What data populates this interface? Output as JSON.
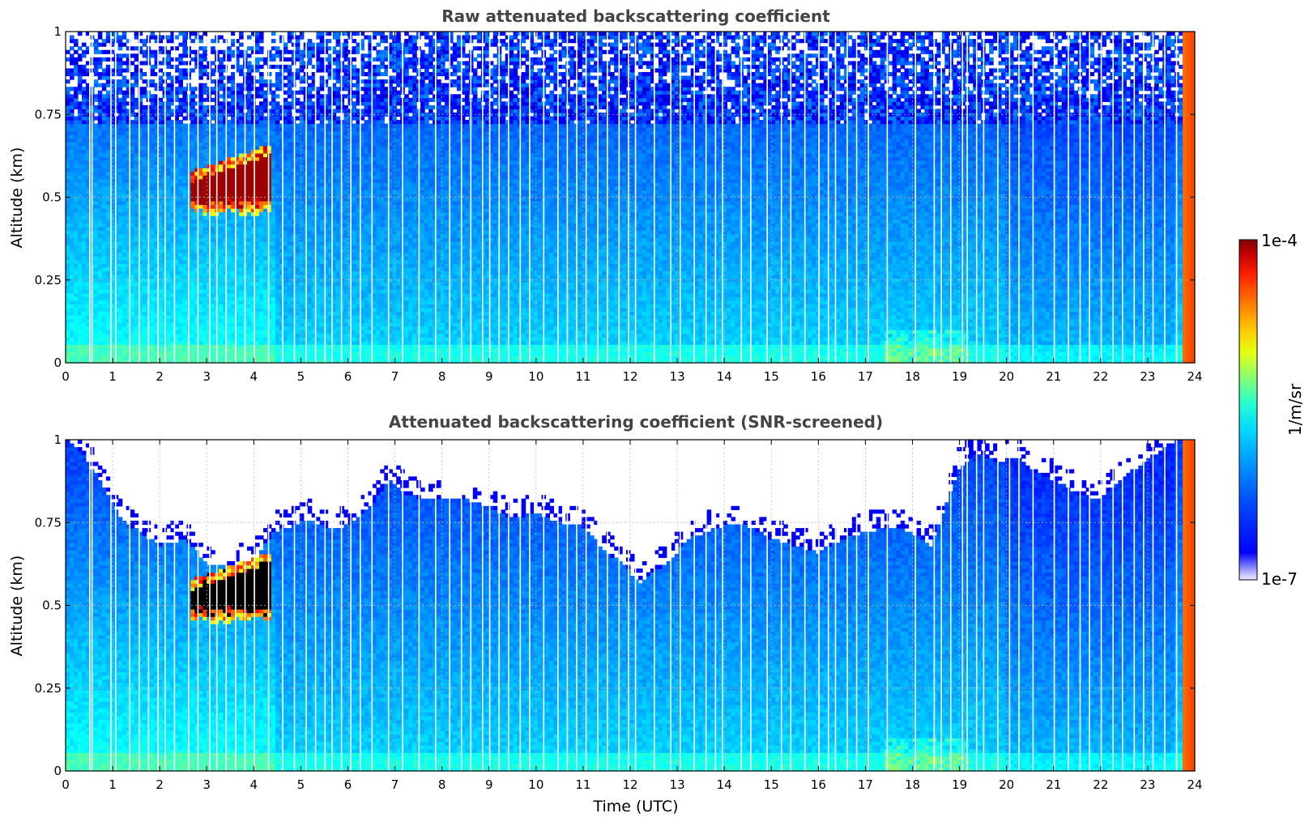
{
  "chart_data": [
    {
      "type": "heatmap",
      "title": "Raw attenuated backscattering coefficient",
      "xlabel": "",
      "ylabel": "Altitude (km)",
      "xlim": [
        0,
        24
      ],
      "ylim": [
        0,
        1
      ],
      "xticks": [
        "0",
        "1",
        "2",
        "3",
        "4",
        "5",
        "6",
        "7",
        "8",
        "9",
        "10",
        "11",
        "12",
        "13",
        "14",
        "15",
        "16",
        "17",
        "18",
        "19",
        "20",
        "21",
        "22",
        "23",
        "24"
      ],
      "yticks": [
        "0",
        "0.25",
        "0.5",
        "0.75",
        "1"
      ],
      "grid": true,
      "screened": false,
      "features": {
        "cloud_layer": {
          "t_start": 2.7,
          "t_end": 4.35,
          "alt_bottom": 0.44,
          "alt_top": 0.66
        },
        "noise_onset_altitude": 0.72,
        "data_gaps_hours": [
          0.5,
          0.55,
          0.95,
          1.05,
          1.35,
          1.55,
          1.75,
          1.95,
          2.1,
          2.3,
          2.6,
          2.8,
          3.05,
          3.2,
          3.4,
          3.6,
          3.8,
          4.0,
          4.3,
          4.6,
          4.85,
          5.1,
          5.3,
          5.5,
          5.65,
          5.85,
          6.05,
          6.25,
          6.5,
          6.85,
          7.15,
          7.5,
          7.85,
          8.15,
          8.4,
          8.6,
          8.85,
          9.0,
          9.2,
          9.4,
          9.65,
          9.85,
          10.15,
          10.45,
          10.65,
          10.85,
          11.05,
          11.3,
          11.5,
          11.75,
          11.95,
          12.1,
          12.5,
          12.85,
          13.05,
          13.35,
          13.6,
          13.8,
          13.95,
          14.35,
          14.55,
          14.9,
          15.2,
          15.4,
          15.7,
          16.0,
          16.2,
          16.35,
          16.6,
          16.8,
          17.05,
          17.45,
          18.05,
          18.45,
          18.6,
          18.8,
          19.05,
          19.15,
          19.35,
          19.5,
          19.8,
          20.05,
          20.25,
          20.55,
          21.0,
          21.3,
          21.55,
          21.75,
          22.0,
          22.25,
          22.45,
          22.7,
          22.9,
          23.1,
          23.35,
          23.6
        ]
      }
    },
    {
      "type": "heatmap",
      "title": "Attenuated backscattering coefficient (SNR-screened)",
      "xlabel": "Time (UTC)",
      "ylabel": "Altitude (km)",
      "xlim": [
        0,
        24
      ],
      "ylim": [
        0,
        1
      ],
      "xticks": [
        "0",
        "1",
        "2",
        "3",
        "4",
        "5",
        "6",
        "7",
        "8",
        "9",
        "10",
        "11",
        "12",
        "13",
        "14",
        "15",
        "16",
        "17",
        "18",
        "19",
        "20",
        "21",
        "22",
        "23",
        "24"
      ],
      "yticks": [
        "0",
        "0.25",
        "0.5",
        "0.75",
        "1"
      ],
      "grid": true,
      "screened": true,
      "features": {
        "cloud_layer": {
          "t_start": 2.7,
          "t_end": 4.35,
          "alt_bottom": 0.44,
          "alt_top": 0.66
        },
        "screen_boundary": [
          [
            0.0,
            1.0
          ],
          [
            0.4,
            0.95
          ],
          [
            0.8,
            0.86
          ],
          [
            1.2,
            0.76
          ],
          [
            1.6,
            0.72
          ],
          [
            2.0,
            0.68
          ],
          [
            2.5,
            0.7
          ],
          [
            2.8,
            0.66
          ],
          [
            3.0,
            0.62
          ],
          [
            3.5,
            0.62
          ],
          [
            4.0,
            0.63
          ],
          [
            4.4,
            0.72
          ],
          [
            4.8,
            0.74
          ],
          [
            5.2,
            0.76
          ],
          [
            5.6,
            0.73
          ],
          [
            6.0,
            0.74
          ],
          [
            6.5,
            0.8
          ],
          [
            6.9,
            0.88
          ],
          [
            7.2,
            0.84
          ],
          [
            7.6,
            0.82
          ],
          [
            8.0,
            0.82
          ],
          [
            8.5,
            0.82
          ],
          [
            9.0,
            0.8
          ],
          [
            9.5,
            0.76
          ],
          [
            10.0,
            0.78
          ],
          [
            10.5,
            0.75
          ],
          [
            11.0,
            0.74
          ],
          [
            11.5,
            0.66
          ],
          [
            11.9,
            0.62
          ],
          [
            12.2,
            0.56
          ],
          [
            12.5,
            0.6
          ],
          [
            12.9,
            0.64
          ],
          [
            13.2,
            0.7
          ],
          [
            13.6,
            0.72
          ],
          [
            14.0,
            0.74
          ],
          [
            14.5,
            0.74
          ],
          [
            15.0,
            0.7
          ],
          [
            15.5,
            0.68
          ],
          [
            16.0,
            0.66
          ],
          [
            16.5,
            0.7
          ],
          [
            17.0,
            0.72
          ],
          [
            17.5,
            0.74
          ],
          [
            18.0,
            0.72
          ],
          [
            18.4,
            0.68
          ],
          [
            18.7,
            0.8
          ],
          [
            19.0,
            0.92
          ],
          [
            19.4,
            0.96
          ],
          [
            19.8,
            0.93
          ],
          [
            20.2,
            0.95
          ],
          [
            20.6,
            0.9
          ],
          [
            21.0,
            0.88
          ],
          [
            21.5,
            0.84
          ],
          [
            22.0,
            0.82
          ],
          [
            22.4,
            0.88
          ],
          [
            22.8,
            0.92
          ],
          [
            23.2,
            0.96
          ],
          [
            23.6,
            1.0
          ],
          [
            24.0,
            1.0
          ]
        ],
        "data_gaps_hours": [
          0.5,
          0.55,
          0.95,
          1.05,
          1.35,
          1.55,
          1.75,
          1.95,
          2.1,
          2.3,
          2.6,
          2.8,
          3.05,
          3.2,
          3.4,
          3.6,
          3.8,
          4.0,
          4.3,
          4.6,
          4.85,
          5.1,
          5.3,
          5.5,
          5.65,
          5.85,
          6.05,
          6.25,
          6.5,
          6.85,
          7.15,
          7.5,
          7.85,
          8.15,
          8.4,
          8.6,
          8.85,
          9.0,
          9.2,
          9.4,
          9.65,
          9.85,
          10.15,
          10.45,
          10.65,
          10.85,
          11.05,
          11.3,
          11.5,
          11.75,
          11.95,
          12.1,
          12.5,
          12.85,
          13.05,
          13.35,
          13.6,
          13.8,
          13.95,
          14.35,
          14.55,
          14.9,
          15.2,
          15.4,
          15.7,
          16.0,
          16.2,
          16.35,
          16.6,
          16.8,
          17.05,
          17.45,
          18.05,
          18.45,
          18.6,
          18.8,
          19.05,
          19.15,
          19.35,
          19.5,
          19.8,
          20.05,
          20.25,
          20.55,
          21.0,
          21.3,
          21.55,
          21.75,
          22.0,
          22.25,
          22.45,
          22.7,
          22.9,
          23.1,
          23.35,
          23.6
        ]
      }
    }
  ],
  "colorbar": {
    "max_label": "1e-4",
    "min_label": "1e-7",
    "unit": "1/m/sr",
    "colormap": "jet"
  }
}
